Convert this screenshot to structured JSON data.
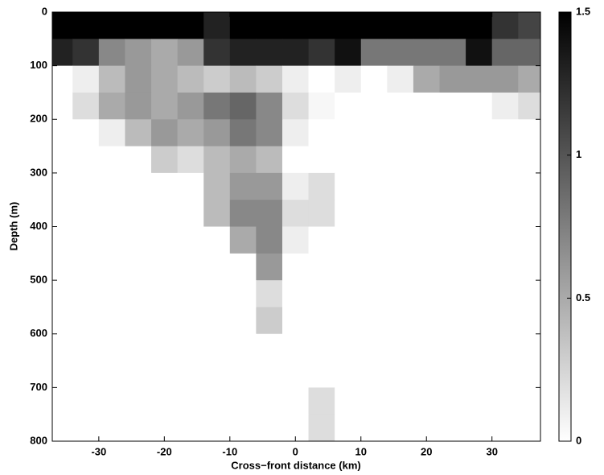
{
  "chart_data": {
    "type": "heatmap",
    "xlabel": "Cross−front distance (km)",
    "ylabel": "Depth (m)",
    "x": [
      -36,
      -32,
      -28,
      -24,
      -20,
      -16,
      -12,
      -8,
      -4,
      0,
      4,
      8,
      12,
      16,
      20,
      24,
      28,
      32,
      36
    ],
    "y": [
      25,
      75,
      125,
      175,
      225,
      275,
      325,
      375,
      425,
      475,
      525,
      575,
      625,
      675,
      725,
      775
    ],
    "z": [
      [
        1.5,
        1.5,
        1.5,
        1.5,
        1.5,
        1.5,
        1.3,
        1.5,
        1.5,
        1.5,
        1.5,
        1.5,
        1.5,
        1.5,
        1.5,
        1.5,
        1.5,
        1.2,
        1.1
      ],
      [
        1.3,
        1.2,
        0.7,
        0.6,
        0.5,
        0.6,
        1.2,
        1.3,
        1.3,
        1.3,
        1.2,
        1.4,
        0.8,
        0.8,
        0.8,
        0.8,
        1.4,
        0.9,
        0.9
      ],
      [
        0,
        0.1,
        0.4,
        0.6,
        0.5,
        0.4,
        0.3,
        0.4,
        0.3,
        0.1,
        0,
        0.1,
        0,
        0.1,
        0.5,
        0.6,
        0.6,
        0.6,
        0.5
      ],
      [
        0,
        0.2,
        0.5,
        0.6,
        0.5,
        0.6,
        0.8,
        0.9,
        0.7,
        0.2,
        0.05,
        0,
        0,
        0,
        0,
        0,
        0,
        0.1,
        0.2
      ],
      [
        0,
        0,
        0.1,
        0.4,
        0.6,
        0.5,
        0.6,
        0.8,
        0.7,
        0.1,
        0,
        0,
        0,
        0,
        0,
        0,
        0,
        0,
        0
      ],
      [
        0,
        0,
        0,
        0,
        0.3,
        0.2,
        0.4,
        0.5,
        0.4,
        0,
        0,
        0,
        0,
        0,
        0,
        0,
        0,
        0,
        0
      ],
      [
        0,
        0,
        0,
        0,
        0,
        0,
        0.4,
        0.6,
        0.6,
        0.1,
        0.2,
        0,
        0,
        0,
        0,
        0,
        0,
        0,
        0
      ],
      [
        0,
        0,
        0,
        0,
        0,
        0,
        0.4,
        0.7,
        0.7,
        0.2,
        0.2,
        0,
        0,
        0,
        0,
        0,
        0,
        0,
        0
      ],
      [
        0,
        0,
        0,
        0,
        0,
        0,
        0,
        0.5,
        0.7,
        0.1,
        0,
        0,
        0,
        0,
        0,
        0,
        0,
        0,
        0
      ],
      [
        0,
        0,
        0,
        0,
        0,
        0,
        0,
        0,
        0.6,
        0,
        0,
        0,
        0,
        0,
        0,
        0,
        0,
        0,
        0
      ],
      [
        0,
        0,
        0,
        0,
        0,
        0,
        0,
        0,
        0.2,
        0,
        0,
        0,
        0,
        0,
        0,
        0,
        0,
        0,
        0
      ],
      [
        0,
        0,
        0,
        0,
        0,
        0,
        0,
        0,
        0.3,
        0,
        0,
        0,
        0,
        0,
        0,
        0,
        0,
        0,
        0
      ],
      [
        0,
        0,
        0,
        0,
        0,
        0,
        0,
        0,
        0,
        0,
        0,
        0,
        0,
        0,
        0,
        0,
        0,
        0,
        0
      ],
      [
        0,
        0,
        0,
        0,
        0,
        0,
        0,
        0,
        0,
        0,
        0,
        0,
        0,
        0,
        0,
        0,
        0,
        0,
        0
      ],
      [
        0,
        0,
        0,
        0,
        0,
        0,
        0,
        0,
        0,
        0,
        0.2,
        0,
        0,
        0,
        0,
        0,
        0,
        0,
        0
      ],
      [
        0,
        0,
        0,
        0,
        0,
        0,
        0,
        0,
        0,
        0,
        0.2,
        0,
        0,
        0,
        0,
        0,
        0,
        0,
        0
      ]
    ],
    "xlim": [
      -37.1,
      37.4
    ],
    "xticks": [
      -30,
      -20,
      -10,
      0,
      10,
      20,
      30
    ],
    "ylim": [
      0,
      800
    ],
    "yticks": [
      0,
      100,
      200,
      300,
      400,
      500,
      600,
      700,
      800
    ],
    "y_reversed": true,
    "clim": [
      0,
      1.5
    ],
    "cticks": [
      0,
      0.5,
      1,
      1.5
    ],
    "colormap": "gray-reversed"
  }
}
